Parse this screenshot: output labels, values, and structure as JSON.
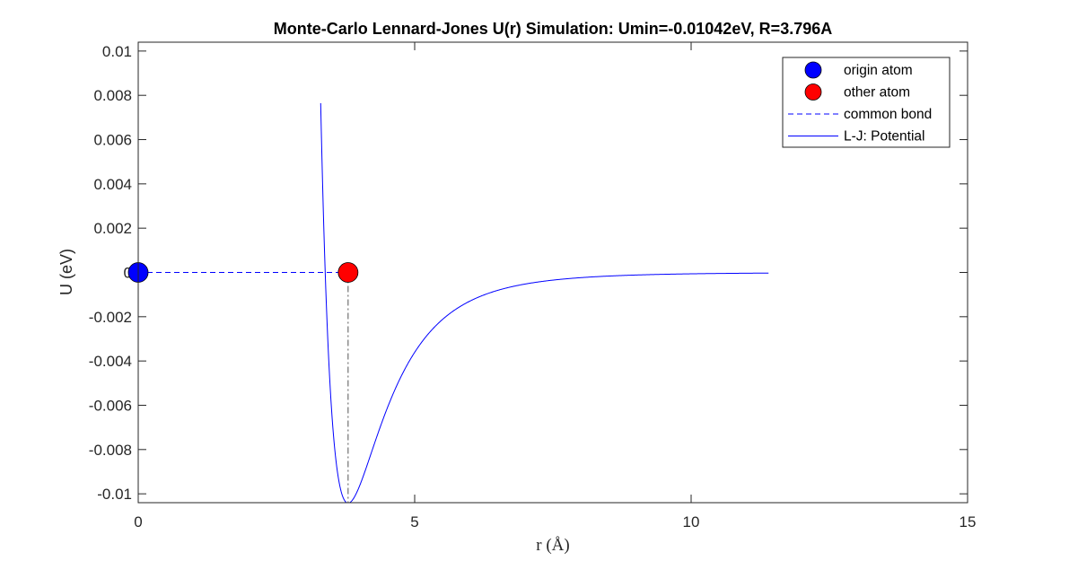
{
  "chart_data": {
    "type": "line",
    "title": "Monte-Carlo Lennard-Jones U(r) Simulation: Umin=-0.01042eV, R=3.796A",
    "xlabel": "r (Å)",
    "ylabel": "U (eV)",
    "xlim": [
      0,
      15
    ],
    "ylim": [
      -0.0104,
      0.0104
    ],
    "x_ticks": [
      0,
      5,
      10,
      15
    ],
    "x_tick_labels": [
      "0",
      "5",
      "10",
      "15"
    ],
    "y_ticks": [
      -0.01,
      -0.008,
      -0.006,
      -0.004,
      -0.002,
      0,
      0.002,
      0.004,
      0.006,
      0.008,
      0.01
    ],
    "y_tick_labels": [
      "-0.01",
      "-0.008",
      "-0.006",
      "-0.004",
      "-0.002",
      "0",
      "0.002",
      "0.004",
      "0.006",
      "0.008",
      "0.01"
    ],
    "grid": false,
    "legend_position": "top-right",
    "potential": {
      "epsilon": 0.01042,
      "r_min": 3.796,
      "x_start": 3.3,
      "x_end": 11.4
    },
    "series": [
      {
        "name": "origin atom",
        "kind": "marker",
        "x": [
          0
        ],
        "y": [
          0
        ],
        "color": "#0000ff"
      },
      {
        "name": "other atom",
        "kind": "marker",
        "x": [
          3.796
        ],
        "y": [
          0
        ],
        "color": "#ff0000"
      },
      {
        "name": "common bond",
        "kind": "dashed",
        "x": [
          0,
          3.796
        ],
        "y": [
          0,
          0
        ],
        "color": "#0000ff"
      },
      {
        "name": "L-J: Potential",
        "kind": "line",
        "color": "#0000ff"
      },
      {
        "name": "",
        "kind": "dashdot",
        "x": [
          3.796,
          3.796
        ],
        "y": [
          0,
          -0.01042
        ],
        "color": "#555555"
      }
    ]
  }
}
